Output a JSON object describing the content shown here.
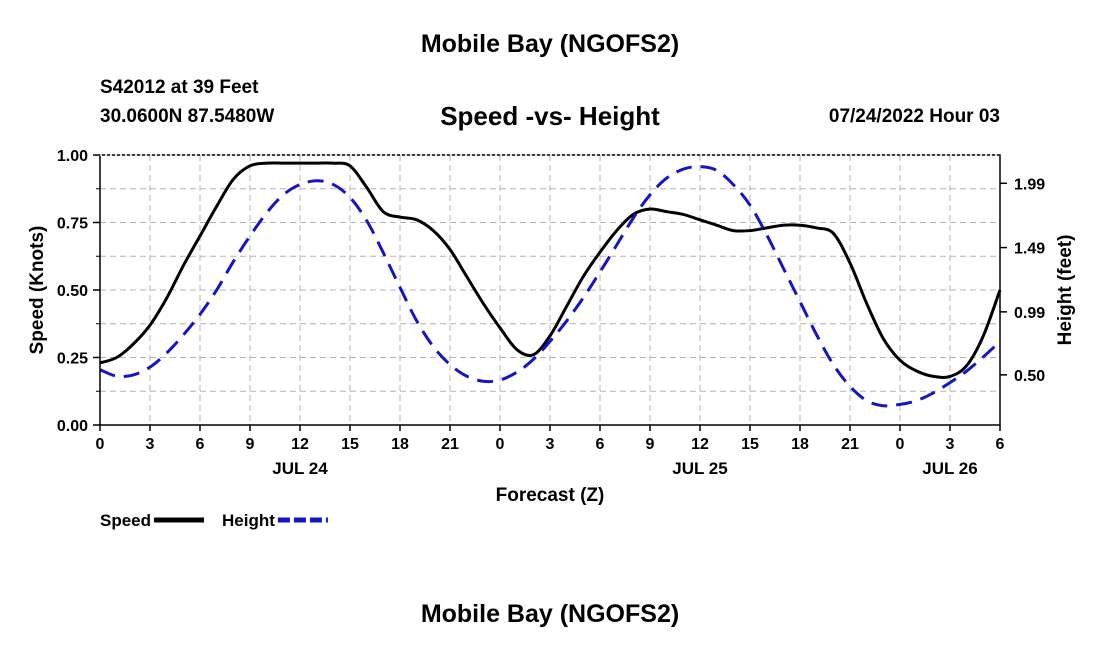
{
  "header": {
    "title": "Mobile Bay (NGOFS2)",
    "station": "S42012 at 39 Feet",
    "coords": "30.0600N  87.5480W",
    "subtitle": "Speed -vs- Height",
    "datetime": "07/24/2022 Hour 03"
  },
  "footer": {
    "title": "Mobile Bay (NGOFS2)"
  },
  "chart_data": {
    "type": "line",
    "xlabel": "Forecast (Z)",
    "ylabel_left": "Speed (Knots)",
    "ylabel_right": "Height (feet)",
    "x_tick_labels": [
      "0",
      "3",
      "6",
      "9",
      "12",
      "15",
      "18",
      "21",
      "0",
      "3",
      "6",
      "9",
      "12",
      "15",
      "18",
      "21",
      "0",
      "3",
      "6"
    ],
    "day_labels": [
      {
        "label": "JUL 24",
        "hour": 12
      },
      {
        "label": "JUL 25",
        "hour": 36
      },
      {
        "label": "JUL 26",
        "hour": 51
      }
    ],
    "xlim": [
      0,
      54
    ],
    "ylim_left": [
      0,
      1
    ],
    "yticks_left": [
      "0.00",
      "0.25",
      "0.50",
      "0.75",
      "1.00"
    ],
    "ylim_right": [
      0.11,
      2.21
    ],
    "yticks_right": [
      {
        "label": "0.50",
        "value": 0.5
      },
      {
        "label": "0.99",
        "value": 0.99
      },
      {
        "label": "1.49",
        "value": 1.49
      },
      {
        "label": "1.99",
        "value": 1.99
      }
    ],
    "grid": true,
    "series": [
      {
        "name": "Speed",
        "axis": "left",
        "color": "#000000",
        "dash": "solid",
        "x": [
          0,
          1,
          2,
          3,
          4,
          5,
          6,
          7,
          8,
          9,
          10,
          11,
          12,
          13,
          14,
          15,
          16,
          17,
          18,
          19,
          20,
          21,
          22,
          23,
          24,
          25,
          26,
          27,
          28,
          29,
          30,
          31,
          32,
          33,
          34,
          35,
          36,
          37,
          38,
          39,
          40,
          41,
          42,
          43,
          44,
          45,
          46,
          47,
          48,
          49,
          50,
          51,
          52,
          53,
          54
        ],
        "values": [
          0.23,
          0.25,
          0.3,
          0.37,
          0.47,
          0.59,
          0.7,
          0.81,
          0.91,
          0.96,
          0.97,
          0.97,
          0.97,
          0.97,
          0.97,
          0.96,
          0.88,
          0.79,
          0.77,
          0.76,
          0.72,
          0.65,
          0.55,
          0.45,
          0.36,
          0.28,
          0.26,
          0.33,
          0.44,
          0.55,
          0.64,
          0.72,
          0.78,
          0.8,
          0.79,
          0.78,
          0.76,
          0.74,
          0.72,
          0.72,
          0.73,
          0.74,
          0.74,
          0.73,
          0.71,
          0.6,
          0.45,
          0.32,
          0.24,
          0.2,
          0.18,
          0.18,
          0.22,
          0.33,
          0.5
        ]
      },
      {
        "name": "Height",
        "axis": "right",
        "color": "#1414c8",
        "dash": "dashed",
        "x": [
          0,
          1,
          2,
          3,
          4,
          5,
          6,
          7,
          8,
          9,
          10,
          11,
          12,
          13,
          14,
          15,
          16,
          17,
          18,
          19,
          20,
          21,
          22,
          23,
          24,
          25,
          26,
          27,
          28,
          29,
          30,
          31,
          32,
          33,
          34,
          35,
          36,
          37,
          38,
          39,
          40,
          41,
          42,
          43,
          44,
          45,
          46,
          47,
          48,
          49,
          50,
          51,
          52,
          53,
          54
        ],
        "values": [
          0.54,
          0.49,
          0.5,
          0.56,
          0.67,
          0.81,
          0.97,
          1.16,
          1.38,
          1.58,
          1.76,
          1.9,
          1.98,
          2.01,
          1.98,
          1.88,
          1.7,
          1.45,
          1.18,
          0.92,
          0.72,
          0.58,
          0.49,
          0.45,
          0.46,
          0.52,
          0.62,
          0.76,
          0.92,
          1.1,
          1.3,
          1.51,
          1.72,
          1.9,
          2.03,
          2.1,
          2.12,
          2.09,
          1.98,
          1.82,
          1.59,
          1.33,
          1.07,
          0.81,
          0.58,
          0.41,
          0.3,
          0.26,
          0.27,
          0.3,
          0.36,
          0.44,
          0.53,
          0.64,
          0.76
        ]
      }
    ],
    "legend": [
      {
        "label": "Speed",
        "color": "#000000",
        "dash": "solid"
      },
      {
        "label": "Height",
        "color": "#1414c8",
        "dash": "dashed"
      }
    ],
    "legend_position": "bottom-left"
  }
}
